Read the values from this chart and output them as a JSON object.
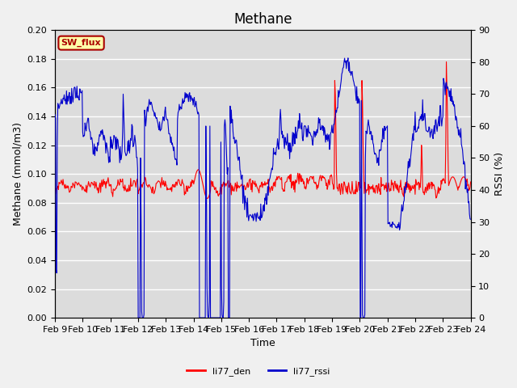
{
  "title": "Methane",
  "ylabel_left": "Methane (mmol/m3)",
  "ylabel_right": "RSSI (%)",
  "xlabel": "Time",
  "ylim_left": [
    0.0,
    0.2
  ],
  "ylim_right": [
    0,
    90
  ],
  "yticks_left": [
    0.0,
    0.02,
    0.04,
    0.06,
    0.08,
    0.1,
    0.12,
    0.14,
    0.16,
    0.18,
    0.2
  ],
  "yticks_right": [
    0,
    10,
    20,
    30,
    40,
    50,
    60,
    70,
    80,
    90
  ],
  "xtick_labels": [
    "Feb 9",
    "Feb 10",
    "Feb 11",
    "Feb 12",
    "Feb 13",
    "Feb 14",
    "Feb 15",
    "Feb 16",
    "Feb 17",
    "Feb 18",
    "Feb 19",
    "Feb 20",
    "Feb 21",
    "Feb 22",
    "Feb 23",
    "Feb 24"
  ],
  "color_red": "#FF0000",
  "color_blue": "#0000CC",
  "bg_color": "#DCDCDC",
  "fig_bg": "#F0F0F0",
  "sw_flux_bg": "#FFFFAA",
  "sw_flux_border": "#AA0000",
  "legend_labels": [
    "li77_den",
    "li77_rssi"
  ],
  "title_fontsize": 12,
  "axis_label_fontsize": 9,
  "tick_fontsize": 8
}
